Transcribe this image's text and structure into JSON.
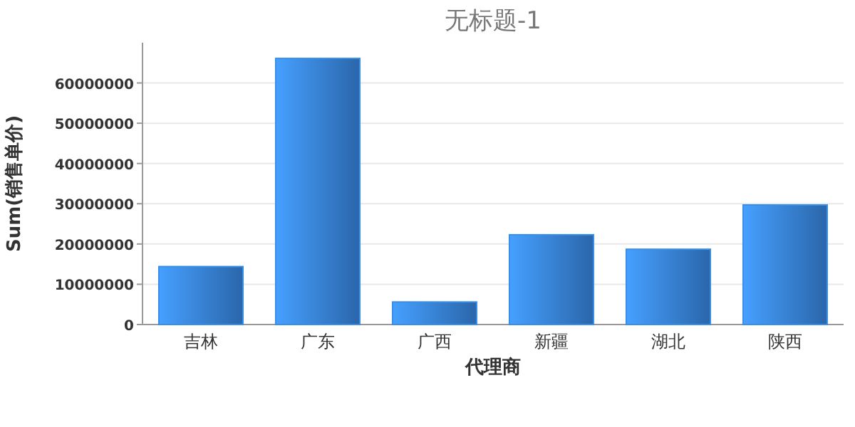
{
  "chart_data": {
    "type": "bar",
    "title": "无标题-1",
    "xlabel": "代理商",
    "ylabel": "Sum(销售单价)",
    "categories": [
      "吉林",
      "广东",
      "广西",
      "新疆",
      "湖北",
      "陕西"
    ],
    "series": [
      {
        "color": "#3a8ee6",
        "values": [
          14400000,
          66100000,
          5600000,
          22300000,
          18700000,
          29700000
        ]
      }
    ],
    "ylim": [
      0,
      70000000
    ],
    "yticks": [
      0,
      10000000,
      20000000,
      30000000,
      40000000,
      50000000,
      60000000
    ],
    "grid": "y"
  }
}
